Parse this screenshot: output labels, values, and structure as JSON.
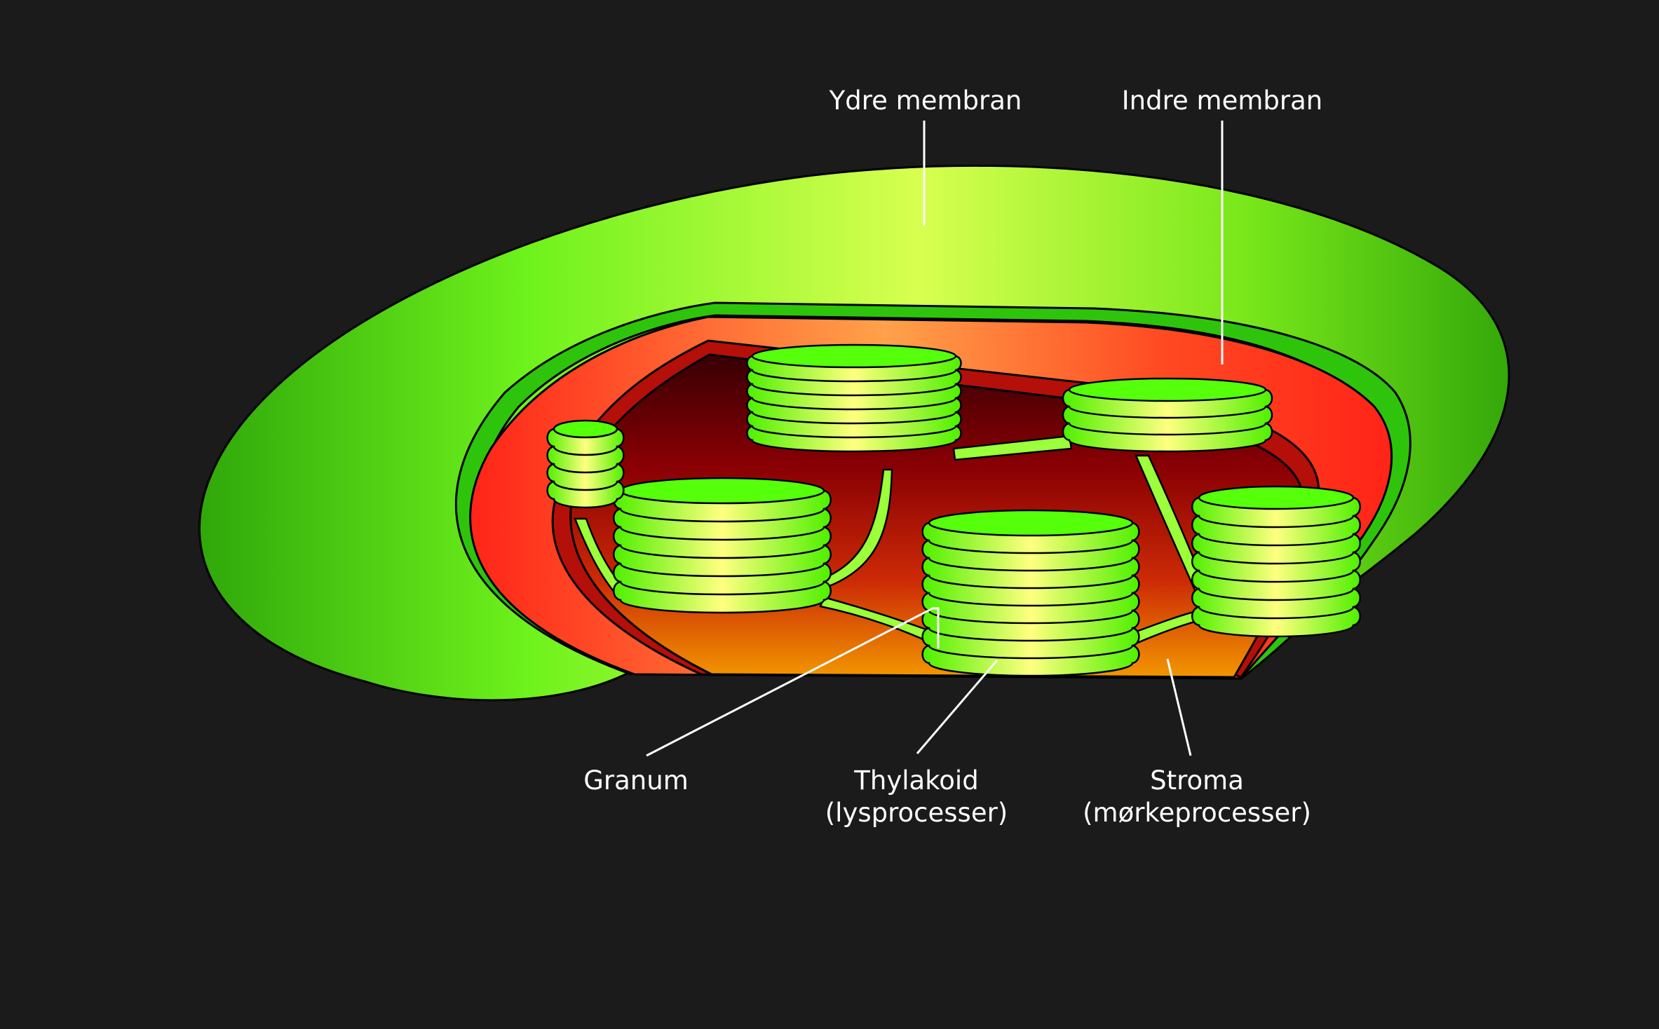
{
  "labels": {
    "outer_membrane": "Ydre membran",
    "inner_membrane": "Indre membran",
    "granum": "Granum",
    "thylakoid": "Thylakoid",
    "thylakoid_note": "(lysprocesser)",
    "stroma": "Stroma",
    "stroma_note": "(mørkeprocesser)"
  },
  "colors": {
    "background": "#1b1b1b",
    "outer_membrane": "#5fdd16",
    "inner_membrane": "#ff2a1a",
    "stroma_top": "#3a0004",
    "stroma_bottom": "#f08a00",
    "thylakoid": "#56ff0a",
    "thylakoid_highlight": "#ffff80"
  }
}
